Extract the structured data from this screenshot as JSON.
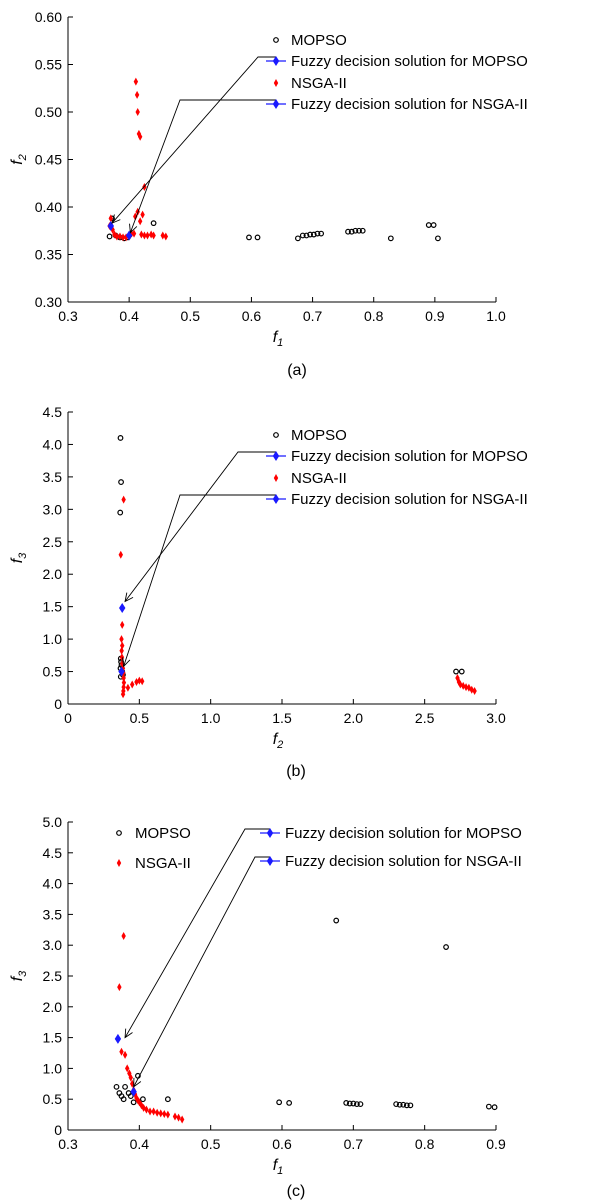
{
  "chart_data": [
    {
      "type": "scatter",
      "caption": "(a)",
      "xlabel": "f",
      "xlabel_sub": "1",
      "ylabel": "f",
      "ylabel_sub": "2",
      "xlim": [
        0.3,
        1.0
      ],
      "ylim": [
        0.3,
        0.6
      ],
      "xticks": [
        "0.3",
        "0.4",
        "0.5",
        "0.6",
        "0.7",
        "0.8",
        "0.9",
        "1.0"
      ],
      "yticks": [
        "0.30",
        "0.35",
        "0.40",
        "0.45",
        "0.50",
        "0.55",
        "0.60"
      ],
      "legend": [
        "MOPSO",
        "Fuzzy decision solution for MOPSO",
        "NSGA-II",
        "Fuzzy decision solution for NSGA-II"
      ],
      "series": [
        {
          "name": "MOPSO",
          "points": [
            [
              0.368,
              0.369
            ],
            [
              0.372,
              0.388
            ],
            [
              0.378,
              0.37
            ],
            [
              0.385,
              0.368
            ],
            [
              0.392,
              0.367
            ],
            [
              0.398,
              0.368
            ],
            [
              0.44,
              0.383
            ],
            [
              0.596,
              0.368
            ],
            [
              0.61,
              0.368
            ],
            [
              0.676,
              0.367
            ],
            [
              0.684,
              0.37
            ],
            [
              0.69,
              0.37
            ],
            [
              0.696,
              0.371
            ],
            [
              0.702,
              0.371
            ],
            [
              0.708,
              0.372
            ],
            [
              0.714,
              0.372
            ],
            [
              0.758,
              0.374
            ],
            [
              0.764,
              0.374
            ],
            [
              0.77,
              0.375
            ],
            [
              0.776,
              0.375
            ],
            [
              0.782,
              0.375
            ],
            [
              0.828,
              0.367
            ],
            [
              0.89,
              0.381
            ],
            [
              0.898,
              0.381
            ],
            [
              0.905,
              0.367
            ]
          ]
        },
        {
          "name": "NSGA-II",
          "points": [
            [
              0.368,
              0.38
            ],
            [
              0.37,
              0.388
            ],
            [
              0.373,
              0.376
            ],
            [
              0.376,
              0.371
            ],
            [
              0.38,
              0.369
            ],
            [
              0.385,
              0.369
            ],
            [
              0.39,
              0.368
            ],
            [
              0.395,
              0.368
            ],
            [
              0.4,
              0.37
            ],
            [
              0.404,
              0.372
            ],
            [
              0.408,
              0.372
            ],
            [
              0.411,
              0.532
            ],
            [
              0.413,
              0.518
            ],
            [
              0.414,
              0.5
            ],
            [
              0.416,
              0.477
            ],
            [
              0.418,
              0.474
            ],
            [
              0.41,
              0.39
            ],
            [
              0.414,
              0.395
            ],
            [
              0.418,
              0.385
            ],
            [
              0.422,
              0.392
            ],
            [
              0.425,
              0.421
            ],
            [
              0.42,
              0.371
            ],
            [
              0.425,
              0.37
            ],
            [
              0.43,
              0.37
            ],
            [
              0.436,
              0.371
            ],
            [
              0.44,
              0.37
            ],
            [
              0.455,
              0.37
            ],
            [
              0.46,
              0.369
            ]
          ]
        },
        {
          "name": "Fuzzy decision solution for MOPSO",
          "points": [
            [
              0.37,
              0.38
            ]
          ]
        },
        {
          "name": "Fuzzy decision solution for NSGA-II",
          "points": [
            [
              0.4,
              0.37
            ]
          ]
        }
      ]
    },
    {
      "type": "scatter",
      "caption": "(b)",
      "xlabel": "f",
      "xlabel_sub": "2",
      "ylabel": "f",
      "ylabel_sub": "3",
      "xlim": [
        0,
        3.0
      ],
      "ylim": [
        0,
        4.5
      ],
      "xticks": [
        "0",
        "0.5",
        "1.0",
        "1.5",
        "2.0",
        "2.5",
        "3.0"
      ],
      "yticks": [
        "0",
        "0.5",
        "1.0",
        "1.5",
        "2.0",
        "2.5",
        "3.0",
        "3.5",
        "4.0",
        "4.5"
      ],
      "legend": [
        "MOPSO",
        "Fuzzy decision solution for MOPSO",
        "NSGA-II",
        "Fuzzy decision solution for NSGA-II"
      ],
      "series": [
        {
          "name": "MOPSO",
          "points": [
            [
              0.368,
              4.1
            ],
            [
              0.372,
              3.42
            ],
            [
              0.366,
              2.95
            ],
            [
              0.37,
              0.7
            ],
            [
              0.372,
              0.65
            ],
            [
              0.375,
              0.6
            ],
            [
              0.368,
              0.55
            ],
            [
              0.38,
              0.5
            ],
            [
              0.385,
              0.45
            ],
            [
              0.37,
              0.42
            ],
            [
              2.72,
              0.5
            ],
            [
              2.76,
              0.5
            ]
          ]
        },
        {
          "name": "NSGA-II",
          "points": [
            [
              0.39,
              3.15
            ],
            [
              0.37,
              2.3
            ],
            [
              0.38,
              1.22
            ],
            [
              0.375,
              1.0
            ],
            [
              0.38,
              0.9
            ],
            [
              0.376,
              0.82
            ],
            [
              0.378,
              0.72
            ],
            [
              0.38,
              0.62
            ],
            [
              0.385,
              0.55
            ],
            [
              0.388,
              0.48
            ],
            [
              0.39,
              0.4
            ],
            [
              0.392,
              0.33
            ],
            [
              0.39,
              0.26
            ],
            [
              0.388,
              0.2
            ],
            [
              0.386,
              0.15
            ],
            [
              0.42,
              0.25
            ],
            [
              0.45,
              0.3
            ],
            [
              0.48,
              0.34
            ],
            [
              0.5,
              0.36
            ],
            [
              0.52,
              0.35
            ],
            [
              2.73,
              0.4
            ],
            [
              2.74,
              0.34
            ],
            [
              2.75,
              0.3
            ],
            [
              2.77,
              0.28
            ],
            [
              2.79,
              0.26
            ],
            [
              2.81,
              0.25
            ],
            [
              2.83,
              0.22
            ],
            [
              2.85,
              0.2
            ]
          ]
        },
        {
          "name": "Fuzzy decision solution for MOPSO",
          "points": [
            [
              0.38,
              1.48
            ]
          ]
        },
        {
          "name": "Fuzzy decision solution for NSGA-II",
          "points": [
            [
              0.375,
              0.5
            ]
          ]
        }
      ]
    },
    {
      "type": "scatter",
      "caption": "(c)",
      "xlabel": "f",
      "xlabel_sub": "1",
      "ylabel": "f",
      "ylabel_sub": "3",
      "xlim": [
        0.3,
        0.9
      ],
      "ylim": [
        0,
        5.0
      ],
      "xticks": [
        "0.3",
        "0.4",
        "0.5",
        "0.6",
        "0.7",
        "0.8",
        "0.9"
      ],
      "yticks": [
        "0",
        "0.5",
        "1.0",
        "1.5",
        "2.0",
        "2.5",
        "3.0",
        "3.5",
        "4.0",
        "4.5",
        "5.0"
      ],
      "legend": [
        "MOPSO",
        "Fuzzy decision solution for MOPSO",
        "NSGA-II",
        "Fuzzy decision solution for NSGA-II"
      ],
      "series": [
        {
          "name": "MOPSO",
          "points": [
            [
              0.368,
              0.7
            ],
            [
              0.372,
              0.6
            ],
            [
              0.375,
              0.55
            ],
            [
              0.378,
              0.5
            ],
            [
              0.38,
              0.7
            ],
            [
              0.385,
              0.6
            ],
            [
              0.388,
              0.55
            ],
            [
              0.392,
              0.45
            ],
            [
              0.398,
              0.88
            ],
            [
              0.405,
              0.5
            ],
            [
              0.44,
              0.5
            ],
            [
              0.596,
              0.45
            ],
            [
              0.61,
              0.44
            ],
            [
              0.676,
              3.4
            ],
            [
              0.69,
              0.44
            ],
            [
              0.695,
              0.43
            ],
            [
              0.7,
              0.43
            ],
            [
              0.705,
              0.42
            ],
            [
              0.71,
              0.42
            ],
            [
              0.76,
              0.42
            ],
            [
              0.765,
              0.41
            ],
            [
              0.77,
              0.41
            ],
            [
              0.775,
              0.4
            ],
            [
              0.78,
              0.4
            ],
            [
              0.83,
              2.97
            ],
            [
              0.89,
              0.38
            ],
            [
              0.898,
              0.37
            ]
          ]
        },
        {
          "name": "NSGA-II",
          "points": [
            [
              0.378,
              3.15
            ],
            [
              0.372,
              2.32
            ],
            [
              0.375,
              1.27
            ],
            [
              0.38,
              1.22
            ],
            [
              0.383,
              1.0
            ],
            [
              0.386,
              0.92
            ],
            [
              0.388,
              0.85
            ],
            [
              0.39,
              0.75
            ],
            [
              0.392,
              0.65
            ],
            [
              0.394,
              0.58
            ],
            [
              0.396,
              0.52
            ],
            [
              0.398,
              0.48
            ],
            [
              0.4,
              0.45
            ],
            [
              0.403,
              0.4
            ],
            [
              0.406,
              0.36
            ],
            [
              0.41,
              0.33
            ],
            [
              0.415,
              0.3
            ],
            [
              0.42,
              0.3
            ],
            [
              0.425,
              0.28
            ],
            [
              0.43,
              0.27
            ],
            [
              0.435,
              0.26
            ],
            [
              0.44,
              0.25
            ],
            [
              0.45,
              0.22
            ],
            [
              0.455,
              0.2
            ],
            [
              0.46,
              0.17
            ]
          ]
        },
        {
          "name": "Fuzzy decision solution for MOPSO",
          "points": [
            [
              0.37,
              1.48
            ]
          ]
        },
        {
          "name": "Fuzzy decision solution for NSGA-II",
          "points": [
            [
              0.392,
              0.62
            ]
          ]
        }
      ]
    }
  ],
  "colors": {
    "mopso": "#000000",
    "nsga": "#ff0000",
    "fuzzy": "#1a1aff"
  }
}
